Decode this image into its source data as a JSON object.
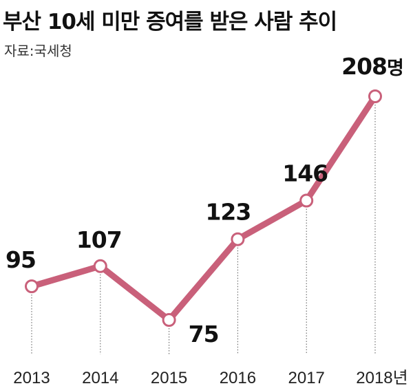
{
  "title": "부산 10세 미만 증여를 받은 사람 추이",
  "source": "자료:국세청",
  "colors": {
    "line": "#c9607a",
    "marker_fill": "#ffffff",
    "guide": "#555555",
    "text": "#111111"
  },
  "chart_data": {
    "type": "line",
    "title": "부산 10세 미만 증여를 받은 사람 추이",
    "x": [
      "2013",
      "2014",
      "2015",
      "2016",
      "2017",
      "2018"
    ],
    "x_suffix_last": "년",
    "values": [
      95,
      107,
      75,
      123,
      146,
      208
    ],
    "value_suffix_last": "명",
    "data_labels": [
      "95",
      "107",
      "75",
      "123",
      "146",
      "208"
    ],
    "ylim": [
      60,
      220
    ],
    "grid": false,
    "legend": "none"
  }
}
